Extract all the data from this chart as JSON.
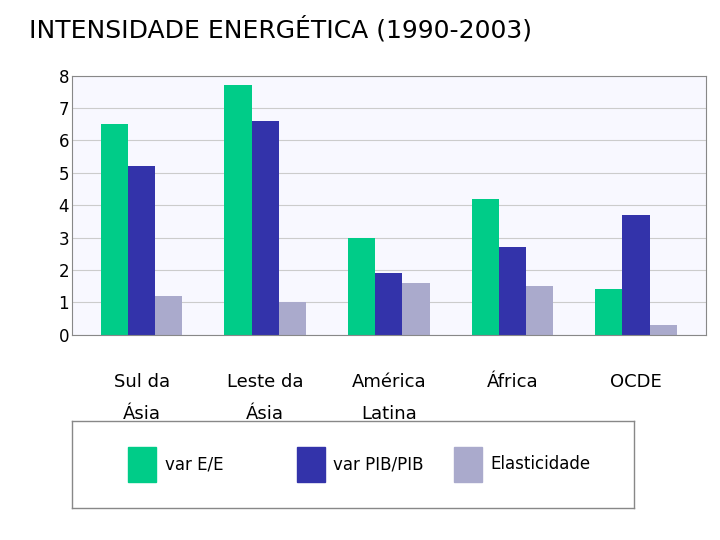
{
  "title": "INTENSIDADE ENERGÉTICA (1990-2003)",
  "categories_line1": [
    "Sul da",
    "Leste da",
    "América",
    "África",
    "OCDE"
  ],
  "categories_line2": [
    "Ásia",
    "Ásia",
    "Latina",
    "",
    ""
  ],
  "series": [
    {
      "name": "var E/E",
      "color": "#00CC88",
      "values": [
        6.5,
        7.7,
        3.0,
        4.2,
        1.4
      ]
    },
    {
      "name": "var PIB/PIB",
      "color": "#3333AA",
      "values": [
        5.2,
        6.6,
        1.9,
        2.7,
        3.7
      ]
    },
    {
      "name": "Elasticidade",
      "color": "#AAAACC",
      "values": [
        1.2,
        1.0,
        1.6,
        1.5,
        0.3
      ]
    }
  ],
  "ylim": [
    0,
    8
  ],
  "yticks": [
    0,
    1,
    2,
    3,
    4,
    5,
    6,
    7,
    8
  ],
  "background_color": "#FFFFFF",
  "title_fontsize": 18,
  "tick_fontsize": 12,
  "legend_fontsize": 12,
  "xlabel_fontsize": 13,
  "bar_width": 0.22,
  "grid_color": "#CCCCCC",
  "chart_bg": "#F8F8FF"
}
